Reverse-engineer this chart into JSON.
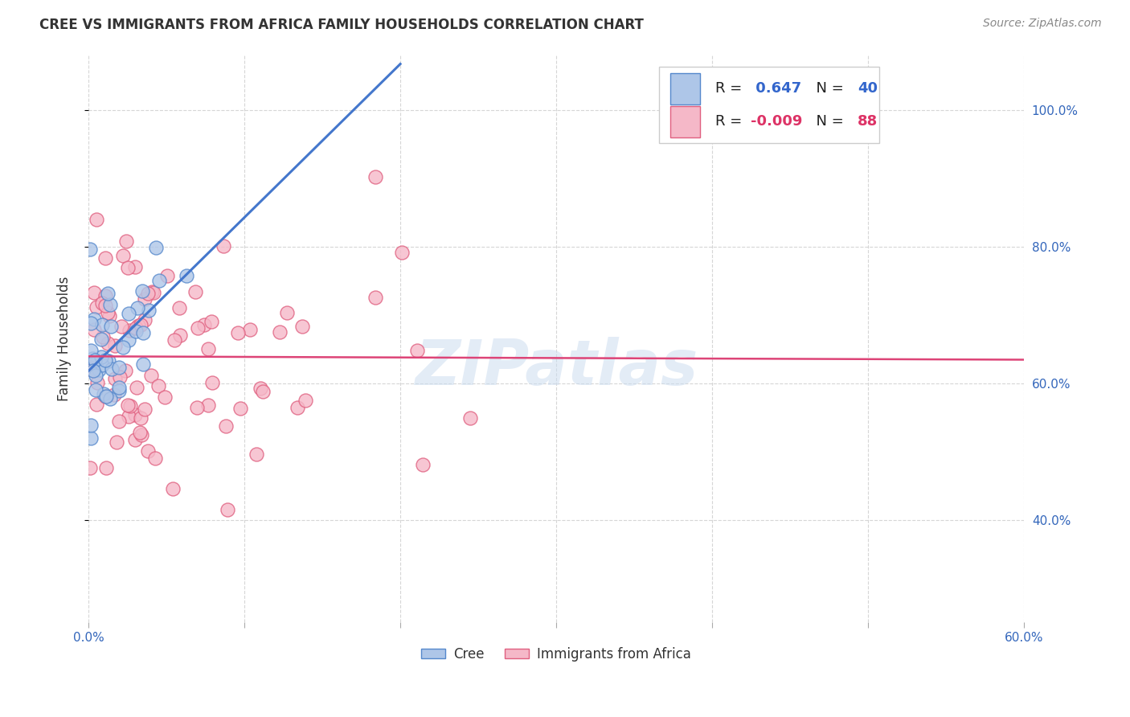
{
  "title": "CREE VS IMMIGRANTS FROM AFRICA FAMILY HOUSEHOLDS CORRELATION CHART",
  "source": "Source: ZipAtlas.com",
  "ylabel": "Family Households",
  "legend_cree_r": "0.647",
  "legend_cree_n": "40",
  "legend_africa_r": "-0.009",
  "legend_africa_n": "88",
  "cree_color": "#aec6e8",
  "africa_color": "#f5b8c8",
  "cree_edge": "#5588cc",
  "africa_edge": "#e06080",
  "trend_cree_color": "#4477cc",
  "trend_africa_color": "#dd4477",
  "watermark": "ZIPatlas",
  "watermark_color": "#ccddf0",
  "xmin": 0,
  "xmax": 60,
  "ymin": 25,
  "ymax": 108,
  "x_ticks": [
    0,
    10,
    20,
    30,
    40,
    50,
    60
  ],
  "y_ticks": [
    40,
    60,
    80,
    100
  ],
  "cree_seed": 77,
  "africa_seed": 33
}
